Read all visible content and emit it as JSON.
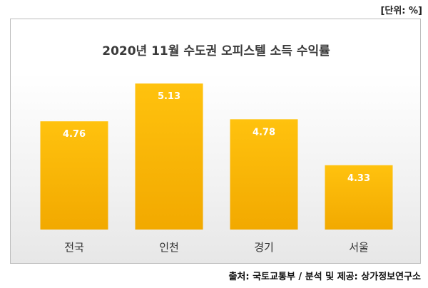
{
  "unit_label": "[단위: %]",
  "source": "출처: 국토교통부 / 분석 및 제공: 상가정보연구소",
  "colors": {
    "bar_top": "#ffc20e",
    "bar_bottom": "#f2a900",
    "bar_label": "#ffffff",
    "category_label": "#333333"
  },
  "chart_data": {
    "type": "bar",
    "title": "2020년 11월 수도권 오피스텔 소득 수익률",
    "categories": [
      "전국",
      "인천",
      "경기",
      "서울"
    ],
    "values": [
      4.76,
      5.13,
      4.78,
      4.33
    ],
    "value_labels": [
      "4.76",
      "5.13",
      "4.78",
      "4.33"
    ],
    "xlabel": "",
    "ylabel": "",
    "ylim": [
      3.7,
      5.25
    ],
    "grid": false,
    "legend": "none"
  }
}
